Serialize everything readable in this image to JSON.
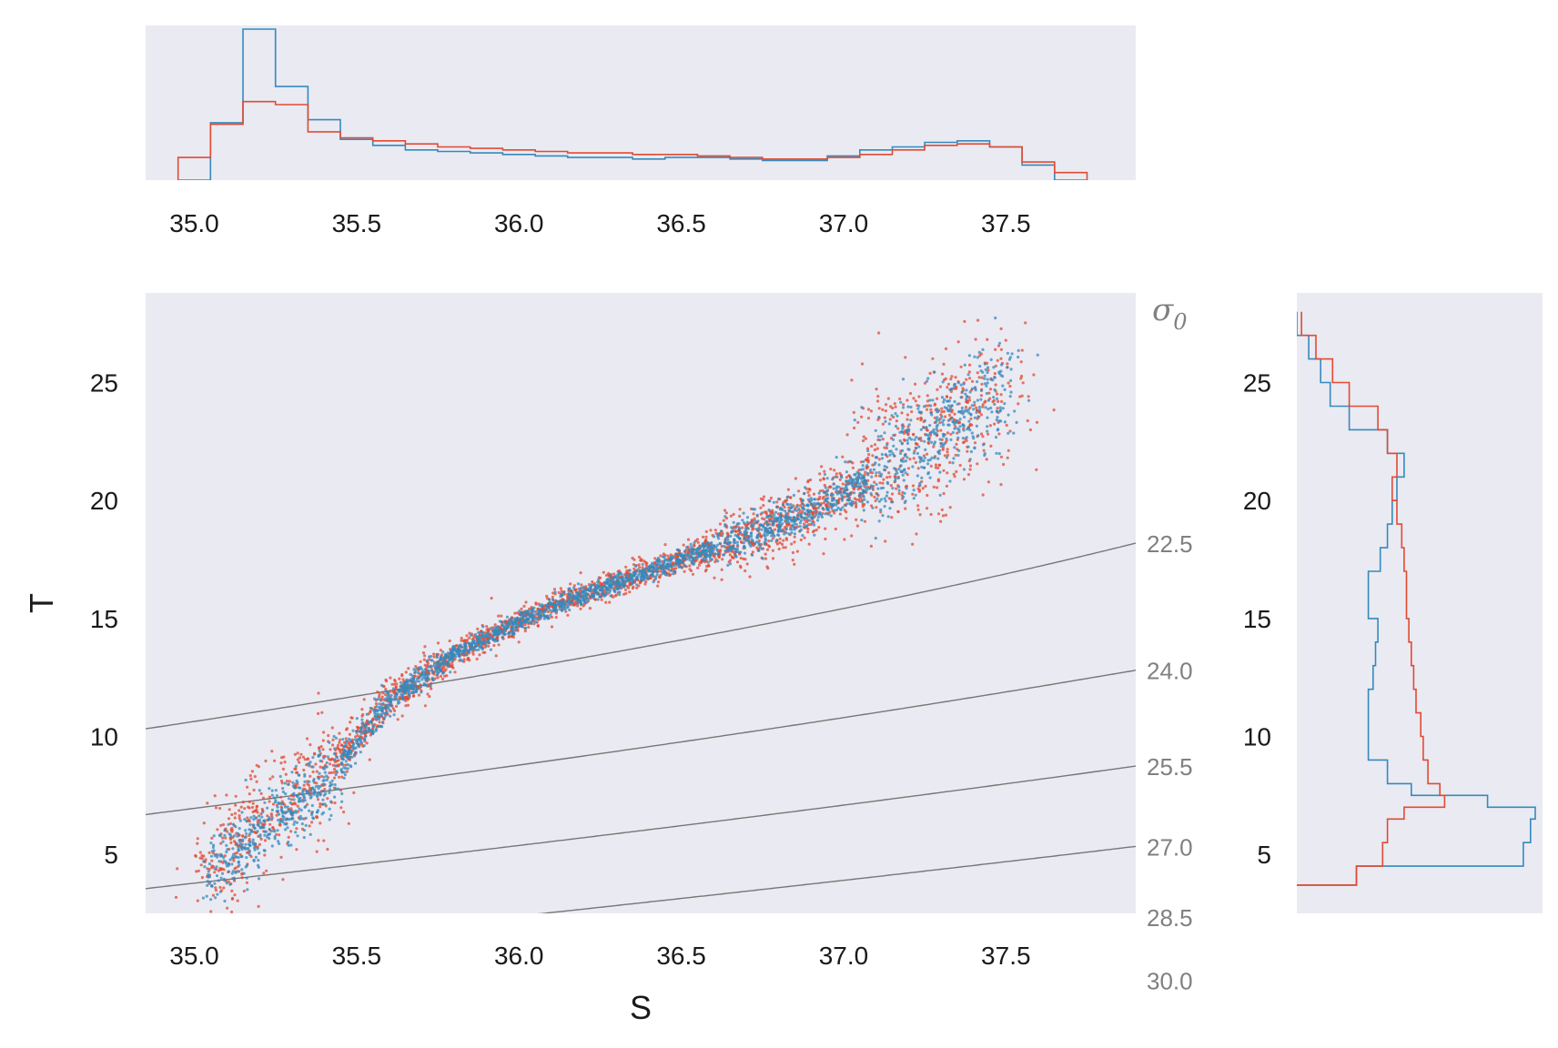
{
  "chart_data": {
    "type": "scatter",
    "title": "",
    "xlabel": "S",
    "ylabel": "T",
    "xlim": [
      34.85,
      37.9
    ],
    "ylim": [
      2.5,
      28.8
    ],
    "xticks": [
      "35.0",
      "35.5",
      "36.0",
      "36.5",
      "37.0",
      "37.5"
    ],
    "yticks": [
      "5",
      "10",
      "15",
      "20",
      "25"
    ],
    "grid": false,
    "colors": {
      "series_a": "#e24a33",
      "series_b": "#348abd",
      "contour": "#777777",
      "panel_bg": "#eaeaf2"
    },
    "density_contours": {
      "symbol": "σ",
      "symbol_subscript": "0",
      "labels": [
        "22.5",
        "24.0",
        "25.5",
        "27.0",
        "28.5",
        "30.0"
      ],
      "levels": [
        22.5,
        24.0,
        25.5,
        27.0,
        28.5,
        30.0
      ]
    },
    "series": [
      {
        "name": "red",
        "color": "#e24a33",
        "trend_S": [
          35.05,
          35.2,
          35.4,
          35.6,
          35.8,
          36.1,
          36.5,
          36.9,
          37.2,
          37.5
        ],
        "trend_T": [
          4.0,
          6.5,
          8.5,
          11.5,
          13.5,
          15.5,
          17.5,
          19.5,
          22.0,
          25.0
        ]
      },
      {
        "name": "blue",
        "color": "#348abd",
        "trend_S": [
          35.05,
          35.2,
          35.4,
          35.6,
          35.8,
          36.1,
          36.5,
          36.9,
          37.2,
          37.5
        ],
        "trend_T": [
          4.0,
          6.0,
          8.0,
          11.5,
          13.5,
          15.5,
          17.5,
          19.5,
          22.0,
          25.0
        ]
      }
    ],
    "salinity_histogram": {
      "xticks": [
        "35.0",
        "35.5",
        "36.0",
        "36.5",
        "37.0",
        "37.5"
      ],
      "bin_edges": [
        34.95,
        35.05,
        35.15,
        35.25,
        35.35,
        35.45,
        35.55,
        35.65,
        35.75,
        35.85,
        35.95,
        36.05,
        36.15,
        36.25,
        36.35,
        36.45,
        36.55,
        36.65,
        36.75,
        36.85,
        36.95,
        37.05,
        37.15,
        37.25,
        37.35,
        37.45,
        37.55,
        37.65,
        37.75
      ],
      "red": [
        0.15,
        0.37,
        0.52,
        0.5,
        0.32,
        0.28,
        0.26,
        0.24,
        0.22,
        0.21,
        0.2,
        0.19,
        0.18,
        0.18,
        0.17,
        0.17,
        0.16,
        0.15,
        0.14,
        0.14,
        0.15,
        0.17,
        0.2,
        0.23,
        0.24,
        0.22,
        0.12,
        0.05,
        0.0
      ],
      "blue": [
        0.0,
        0.38,
        1.0,
        0.62,
        0.4,
        0.27,
        0.23,
        0.2,
        0.19,
        0.18,
        0.17,
        0.16,
        0.15,
        0.15,
        0.14,
        0.15,
        0.15,
        0.14,
        0.13,
        0.13,
        0.16,
        0.2,
        0.22,
        0.25,
        0.26,
        0.22,
        0.1,
        0.0,
        0.0
      ]
    },
    "temperature_histogram": {
      "yticks": [
        "5",
        "10",
        "15",
        "20",
        "25"
      ],
      "bin_edges": [
        3.7,
        4.5,
        5.5,
        6.5,
        7.0,
        7.5,
        8.0,
        9.0,
        10.0,
        11.0,
        12.0,
        13.0,
        14.0,
        15.0,
        16.0,
        17.0,
        18.0,
        19.0,
        20.0,
        21.0,
        22.0,
        23.0,
        24.0,
        25.0,
        26.0,
        27.0,
        28.0
      ],
      "red": [
        0.25,
        0.36,
        0.38,
        0.45,
        0.62,
        0.6,
        0.55,
        0.53,
        0.52,
        0.5,
        0.49,
        0.48,
        0.47,
        0.46,
        0.46,
        0.45,
        0.44,
        0.42,
        0.4,
        0.42,
        0.38,
        0.34,
        0.22,
        0.15,
        0.08,
        0.02
      ],
      "blue": [
        0.25,
        0.95,
        0.98,
        1.0,
        0.8,
        0.48,
        0.38,
        0.3,
        0.3,
        0.3,
        0.32,
        0.33,
        0.34,
        0.3,
        0.3,
        0.35,
        0.38,
        0.4,
        0.42,
        0.45,
        0.38,
        0.22,
        0.14,
        0.1,
        0.05,
        0.0
      ]
    }
  }
}
